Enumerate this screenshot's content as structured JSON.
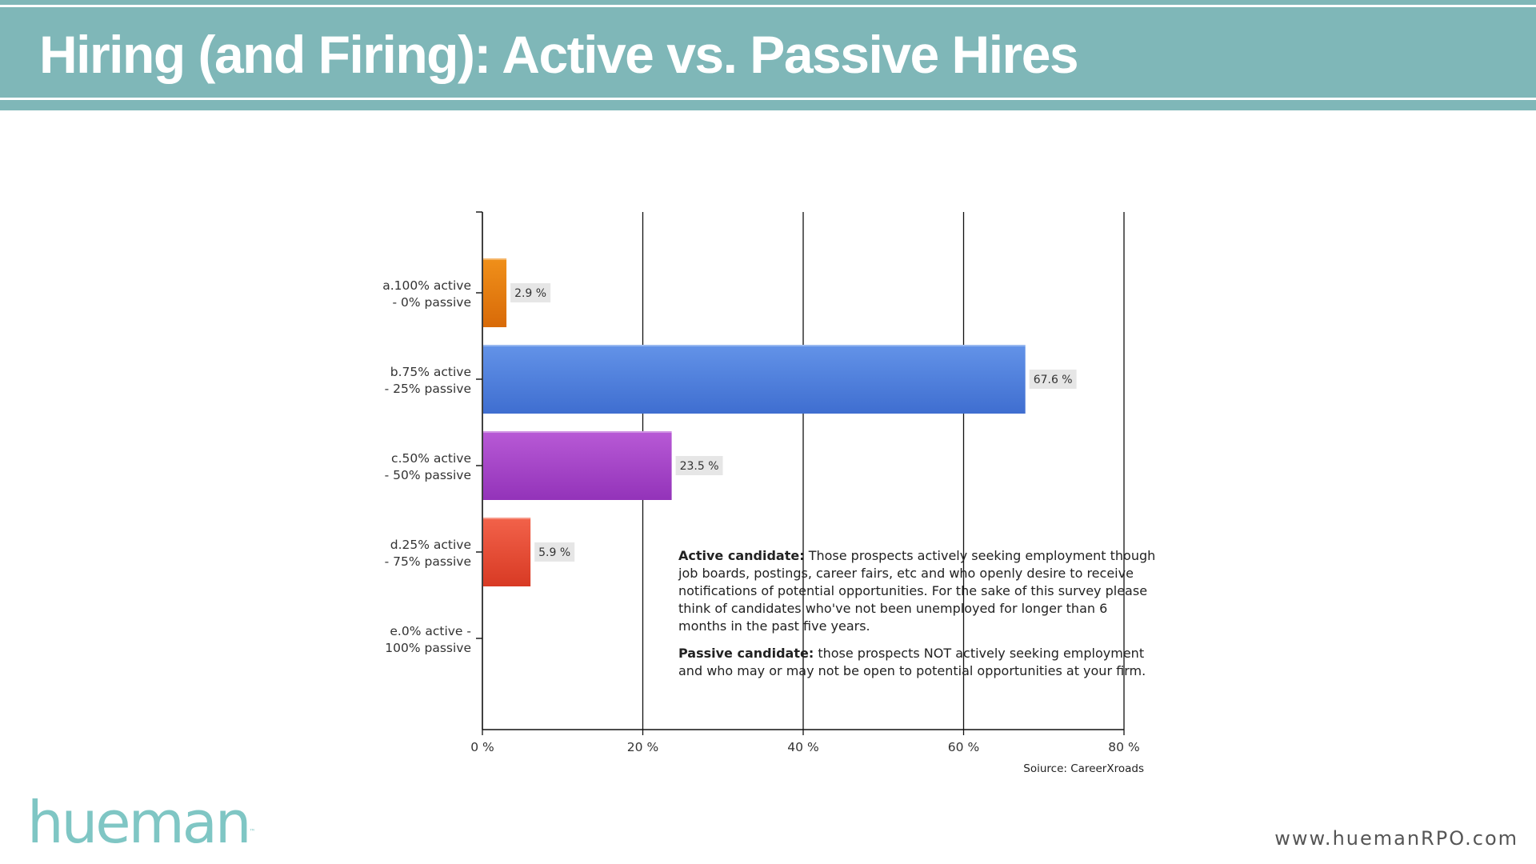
{
  "slide": {
    "title": "Hiring (and Firing): Active vs. Passive Hires",
    "logo": "hueman",
    "logo_mark": "™",
    "website": "www.huemanRPO.com"
  },
  "definitions": {
    "active_term": "Active candidate:",
    "active_text": " Those prospects actively seeking employment though job boards, postings, career fairs, etc and who openly desire to receive notifications of potential opportunities. For the sake of this survey please think of candidates who've not been unemployed for longer than 6 months in the past five years.",
    "passive_term": "Passive candidate:",
    "passive_text": " those prospects NOT actively seeking employment and who may or may not be open to potential opportunities at your firm."
  },
  "chart_data": {
    "type": "bar",
    "orientation": "horizontal",
    "categories": [
      [
        "a.100%  active",
        "- 0%  passive"
      ],
      [
        "b.75%  active",
        "- 25%  passive"
      ],
      [
        "c.50%  active",
        "- 50%  passive"
      ],
      [
        "d.25%  active",
        "- 75%  passive"
      ],
      [
        "e.0%  active -",
        "100% passive"
      ]
    ],
    "values": [
      2.9,
      67.6,
      23.5,
      5.9,
      0
    ],
    "value_labels": [
      "2.9 %",
      "67.6 %",
      "23.5 %",
      "5.9 %",
      ""
    ],
    "colors": [
      [
        "#f0901a",
        "#d86a08"
      ],
      [
        "#6393e8",
        "#3f6ed0"
      ],
      [
        "#b85ad6",
        "#9333b9"
      ],
      [
        "#f2624a",
        "#d83a24"
      ],
      [
        "#999999",
        "#999999"
      ]
    ],
    "xlim": [
      0,
      80
    ],
    "xticks": [
      0,
      20,
      40,
      60,
      80
    ],
    "xtick_labels": [
      "0 %",
      "20 %",
      "40 %",
      "60 %",
      "80 %"
    ],
    "grid": true,
    "source": "Soiurce: CareerXroads"
  }
}
